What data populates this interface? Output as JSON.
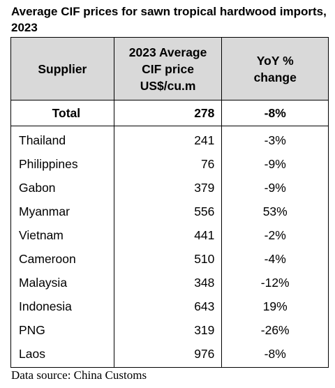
{
  "title": "Average CIF prices for sawn tropical hardwood imports, 2023",
  "table": {
    "header": [
      "Supplier",
      [
        "2023 Average",
        "CIF price",
        "US$/cu.m"
      ],
      [
        "YoY %",
        "change"
      ]
    ],
    "total": [
      "Total",
      278,
      "-8%"
    ],
    "rows": [
      [
        "Thailand",
        241,
        "-3%"
      ],
      [
        "Philippines",
        76,
        "-9%"
      ],
      [
        "Gabon",
        379,
        "-9%"
      ],
      [
        "Myanmar",
        556,
        "53%"
      ],
      [
        "Vietnam",
        441,
        "-2%"
      ],
      [
        "Cameroon",
        510,
        "-4%"
      ],
      [
        "Malaysia",
        348,
        "-12%"
      ],
      [
        "Indonesia",
        643,
        "19%"
      ],
      [
        "PNG",
        319,
        "-26%"
      ],
      [
        "Laos",
        976,
        "-8%"
      ]
    ]
  },
  "source": "Data source: China Customs"
}
